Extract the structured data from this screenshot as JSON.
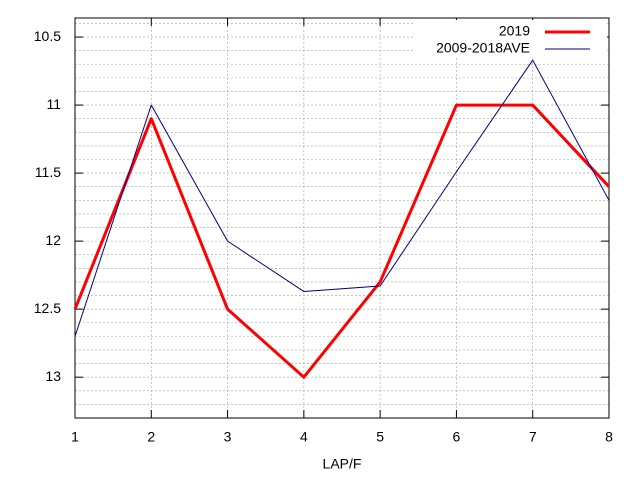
{
  "chart_data": {
    "type": "line",
    "x_label": "LAP/F",
    "x": [
      1,
      2,
      3,
      4,
      5,
      6,
      7,
      8
    ],
    "xlim": [
      1,
      8
    ],
    "xticks": [
      1,
      2,
      3,
      4,
      5,
      6,
      7,
      8
    ],
    "ylim": [
      13.3,
      10.36
    ],
    "yticks": [
      10.5,
      11,
      11.5,
      12,
      12.5,
      13
    ],
    "y_minor_per_major": 5,
    "grid": true,
    "legend": "top-right",
    "series": [
      {
        "name": "2019",
        "color": "#ff0000",
        "width": 3,
        "values": [
          12.5,
          11.1,
          12.5,
          13.0,
          12.3,
          11.0,
          11.0,
          11.6
        ]
      },
      {
        "name": "2009-2018AVE",
        "color": "#000080",
        "width": 1,
        "values": [
          12.7,
          11.0,
          12.0,
          12.37,
          12.33,
          11.49,
          10.67,
          11.7
        ]
      }
    ]
  }
}
